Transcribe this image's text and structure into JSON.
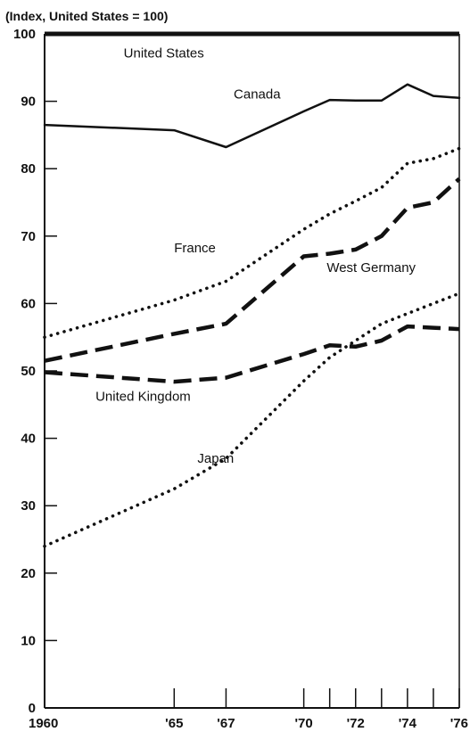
{
  "chart_data": {
    "type": "line",
    "title": "",
    "axis_note": "(Index, United States = 100)",
    "xlabel": "",
    "ylabel": "",
    "xlim": [
      1960,
      1976
    ],
    "ylim": [
      0,
      100
    ],
    "y_ticks": [
      0,
      10,
      20,
      30,
      40,
      50,
      60,
      70,
      80,
      90,
      100
    ],
    "x_ticks": [
      {
        "value": 1960,
        "label": "1960"
      },
      {
        "value": 1965,
        "label": "'65"
      },
      {
        "value": 1967,
        "label": "'67"
      },
      {
        "value": 1970,
        "label": "'70"
      },
      {
        "value": 1971,
        "label": ""
      },
      {
        "value": 1972,
        "label": "'72"
      },
      {
        "value": 1973,
        "label": ""
      },
      {
        "value": 1974,
        "label": "'74"
      },
      {
        "value": 1975,
        "label": ""
      },
      {
        "value": 1976,
        "label": "'76"
      }
    ],
    "grid": false,
    "legend": "none (series labeled directly)",
    "series": [
      {
        "name": "United States",
        "style": "solid-heavy",
        "x": [
          1960,
          1976
        ],
        "y": [
          100,
          100
        ]
      },
      {
        "name": "Canada",
        "style": "solid",
        "x": [
          1960,
          1965,
          1967,
          1970,
          1971,
          1972,
          1973,
          1974,
          1975,
          1976
        ],
        "y": [
          86.5,
          85.7,
          83.2,
          88.5,
          90.2,
          90.1,
          90.1,
          92.5,
          90.8,
          90.5
        ]
      },
      {
        "name": "France",
        "style": "dotted",
        "x": [
          1960,
          1965,
          1967,
          1970,
          1971,
          1972,
          1973,
          1974,
          1975,
          1976
        ],
        "y": [
          55,
          60.5,
          63.3,
          71,
          73.3,
          75.2,
          77.2,
          80.8,
          81.5,
          83
        ]
      },
      {
        "name": "West Germany",
        "style": "dashed",
        "x": [
          1960,
          1965,
          1967,
          1970,
          1971,
          1972,
          1973,
          1974,
          1975,
          1976
        ],
        "y": [
          51.5,
          55.5,
          57,
          67,
          67.4,
          68,
          70,
          74.2,
          75,
          78.5
        ]
      },
      {
        "name": "United Kingdom",
        "style": "dashed",
        "x": [
          1960,
          1965,
          1967,
          1970,
          1971,
          1972,
          1973,
          1974,
          1975,
          1976
        ],
        "y": [
          49.8,
          48.4,
          49,
          52.5,
          53.8,
          53.6,
          54.5,
          56.6,
          56.4,
          56.2
        ]
      },
      {
        "name": "Japan",
        "style": "dotted",
        "x": [
          1960,
          1965,
          1967,
          1970,
          1971,
          1972,
          1973,
          1974,
          1975,
          1976
        ],
        "y": [
          24,
          32.5,
          37,
          48.5,
          52,
          54.5,
          57,
          58.5,
          60,
          61.5
        ]
      }
    ],
    "annotations": [
      {
        "text": "United States",
        "x": 1964.6,
        "y": 96.5
      },
      {
        "text": "Canada",
        "x": 1968.2,
        "y": 90.4
      },
      {
        "text": "France",
        "x": 1965.8,
        "y": 67.6
      },
      {
        "text": "West Germany",
        "x": 1972.6,
        "y": 64.7
      },
      {
        "text": "United Kingdom",
        "x": 1963.8,
        "y": 45.6
      },
      {
        "text": "Japan",
        "x": 1966.6,
        "y": 36.4
      }
    ]
  }
}
